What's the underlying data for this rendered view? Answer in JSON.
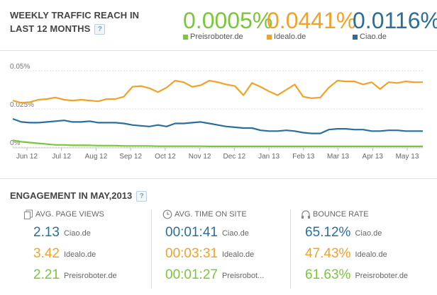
{
  "header": {
    "title_line1": "WEEKLY TRAFFIC REACH IN",
    "title_line2": "LAST 12 MONTHS",
    "help": "?"
  },
  "metrics": [
    {
      "value": "0.0005%",
      "label": "Preisroboter.de",
      "color": "#7dc53c"
    },
    {
      "value": "0.0441%",
      "label": "Idealo.de",
      "color": "#f0a22a"
    },
    {
      "value": "0.0116%",
      "label": "Ciao.de",
      "color": "#2b6e99"
    }
  ],
  "chart_data": {
    "type": "line",
    "y_ticks": [
      "0.05%",
      "0.025%",
      "0%"
    ],
    "ylim": [
      0,
      0.05
    ],
    "x_labels": [
      "Jun 12",
      "Jul 12",
      "Aug 12",
      "Sep 12",
      "Oct 12",
      "Nov 12",
      "Dec 12",
      "Jan 13",
      "Feb 13",
      "Mar 13",
      "Apr 13",
      "May 13"
    ],
    "series": [
      {
        "name": "Idealo.de",
        "color": "#f0a22a",
        "values": [
          0.0305,
          0.029,
          0.0295,
          0.031,
          0.0315,
          0.0325,
          0.031,
          0.0305,
          0.031,
          0.0305,
          0.03,
          0.0315,
          0.0315,
          0.033,
          0.0395,
          0.04,
          0.0385,
          0.036,
          0.039,
          0.0435,
          0.0425,
          0.0395,
          0.0405,
          0.0435,
          0.0425,
          0.041,
          0.04,
          0.034,
          0.042,
          0.0395,
          0.0365,
          0.034,
          0.0375,
          0.041,
          0.033,
          0.032,
          0.0325,
          0.039,
          0.0435,
          0.043,
          0.043,
          0.041,
          0.0425,
          0.038,
          0.0425,
          0.042,
          0.043,
          0.0425,
          0.0425
        ]
      },
      {
        "name": "Ciao.de",
        "color": "#2b6e99",
        "values": [
          0.0185,
          0.0165,
          0.016,
          0.016,
          0.0165,
          0.017,
          0.0175,
          0.0165,
          0.0165,
          0.017,
          0.016,
          0.016,
          0.016,
          0.0155,
          0.0145,
          0.014,
          0.0135,
          0.0145,
          0.0135,
          0.0155,
          0.0155,
          0.016,
          0.0165,
          0.0155,
          0.0145,
          0.0135,
          0.013,
          0.0125,
          0.0125,
          0.011,
          0.0105,
          0.0105,
          0.011,
          0.0105,
          0.0095,
          0.009,
          0.009,
          0.0115,
          0.012,
          0.012,
          0.0115,
          0.0115,
          0.0105,
          0.0105,
          0.011,
          0.011,
          0.0105,
          0.0105,
          0.0105
        ]
      },
      {
        "name": "Preisroboter.de",
        "color": "#7dc53c",
        "values": [
          0.0045,
          0.0035,
          0.003,
          0.0025,
          0.002,
          0.0015,
          0.0015,
          0.0012,
          0.0012,
          0.0012,
          0.001,
          0.001,
          0.001,
          0.0008,
          0.0008,
          0.0008,
          0.0008,
          0.0006,
          0.0006,
          0.0006,
          0.0006,
          0.0006,
          0.0006,
          0.0005,
          0.0005,
          0.0005,
          0.0005,
          0.0005,
          0.0005,
          0.0005,
          0.0005,
          0.0005,
          0.0005,
          0.0005,
          0.0005,
          0.0005,
          0.0005,
          0.0005,
          0.0005,
          0.0005,
          0.0005,
          0.0005,
          0.0005,
          0.0005,
          0.0005,
          0.0005,
          0.0005,
          0.0005,
          0.0005
        ]
      }
    ]
  },
  "engagement": {
    "title": "ENGAGEMENT IN MAY,2013",
    "help": "?",
    "panels": [
      {
        "heading": "AVG. PAGE VIEWS",
        "icon": "pages-icon",
        "rows": [
          {
            "value": "2.13",
            "name": "Ciao.de",
            "color": "#2b6e99"
          },
          {
            "value": "3.42",
            "name": "Idealo.de",
            "color": "#f0a22a"
          },
          {
            "value": "2.21",
            "name": "Preisroboter.de",
            "color": "#7dc53c"
          }
        ]
      },
      {
        "heading": "AVG. TIME ON SITE",
        "icon": "clock-icon",
        "rows": [
          {
            "value": "00:01:41",
            "name": "Ciao.de",
            "color": "#2b6e99"
          },
          {
            "value": "00:03:31",
            "name": "Idealo.de",
            "color": "#f0a22a"
          },
          {
            "value": "00:01:27",
            "name": "Preisrobot...",
            "color": "#7dc53c"
          }
        ]
      },
      {
        "heading": "BOUNCE RATE",
        "icon": "bounce-icon",
        "rows": [
          {
            "value": "65.12%",
            "name": "Ciao.de",
            "color": "#2b6e99"
          },
          {
            "value": "47.43%",
            "name": "Idealo.de",
            "color": "#f0a22a"
          },
          {
            "value": "61.63%",
            "name": "Preisroboter.de",
            "color": "#7dc53c"
          }
        ]
      }
    ]
  }
}
